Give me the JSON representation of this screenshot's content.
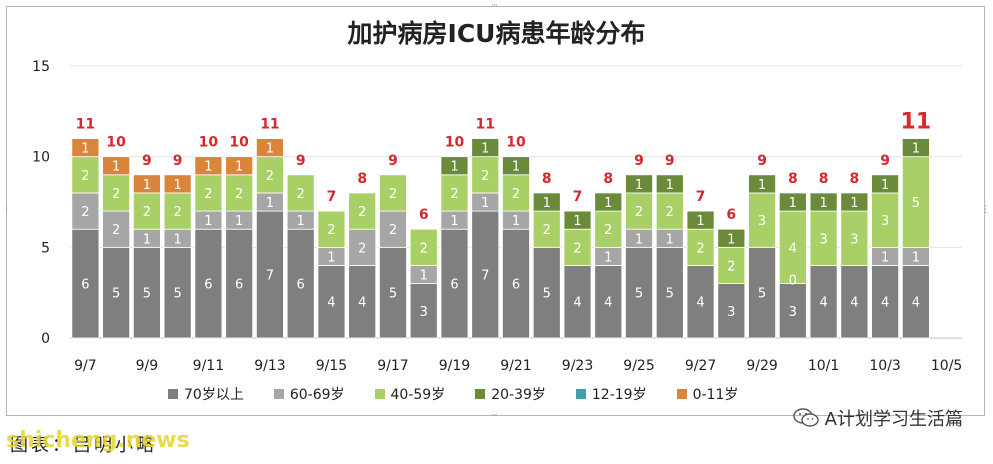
{
  "title": "加护病房ICU病患年龄分布",
  "footer_text": "图表：吕明小略",
  "watermark": "shicheng.news",
  "wechat_label": "A计划学习生活篇",
  "colors": {
    "70+": "#7f7f7f",
    "60-69": "#a6a6a6",
    "40-59": "#a9d067",
    "20-39": "#6b8a3a",
    "12-19": "#3fa0a8",
    "0-11": "#d9853b",
    "total_label": "#d7282f"
  },
  "legend": [
    {
      "key": "70+",
      "label": "70岁以上"
    },
    {
      "key": "60-69",
      "label": "60-69岁"
    },
    {
      "key": "40-59",
      "label": "40-59岁"
    },
    {
      "key": "20-39",
      "label": "20-39岁"
    },
    {
      "key": "12-19",
      "label": "12-19岁"
    },
    {
      "key": "0-11",
      "label": "0-11岁"
    }
  ],
  "chart_data": {
    "type": "bar",
    "stacked": true,
    "title": "加护病房ICU病患年龄分布",
    "categories": [
      "9/7",
      "9/8",
      "9/9",
      "9/10",
      "9/11",
      "9/12",
      "9/13",
      "9/14",
      "9/15",
      "9/16",
      "9/17",
      "9/18",
      "9/19",
      "9/20",
      "9/21",
      "9/22",
      "9/23",
      "9/24",
      "9/25",
      "9/26",
      "9/27",
      "9/28",
      "9/29",
      "9/30",
      "10/1",
      "10/2",
      "10/3",
      "10/4",
      "10/5"
    ],
    "x_tick_labels": [
      "9/7",
      "9/9",
      "9/11",
      "9/13",
      "9/15",
      "9/17",
      "9/19",
      "9/21",
      "9/23",
      "9/25",
      "9/27",
      "9/29",
      "10/1",
      "10/3",
      "10/5"
    ],
    "ylim": [
      0,
      15
    ],
    "yticks": [
      0,
      5,
      10,
      15
    ],
    "series": [
      {
        "name": "70岁以上",
        "key": "70+",
        "values": [
          6,
          5,
          5,
          5,
          6,
          6,
          7,
          6,
          4,
          4,
          5,
          3,
          6,
          7,
          6,
          5,
          4,
          4,
          5,
          5,
          4,
          3,
          5,
          3,
          4,
          4,
          4,
          4,
          null
        ]
      },
      {
        "name": "60-69岁",
        "key": "60-69",
        "values": [
          2,
          2,
          1,
          1,
          1,
          1,
          1,
          1,
          1,
          2,
          2,
          1,
          1,
          1,
          1,
          0,
          0,
          1,
          1,
          1,
          0,
          0,
          0,
          0,
          0,
          0,
          1,
          1,
          null
        ]
      },
      {
        "name": "40-59岁",
        "key": "40-59",
        "values": [
          2,
          2,
          2,
          2,
          2,
          2,
          2,
          2,
          2,
          2,
          2,
          2,
          2,
          2,
          2,
          2,
          2,
          2,
          2,
          2,
          2,
          2,
          3,
          4,
          3,
          3,
          3,
          5,
          null
        ]
      },
      {
        "name": "20-39岁",
        "key": "20-39",
        "values": [
          0,
          0,
          0,
          0,
          0,
          0,
          0,
          0,
          0,
          0,
          0,
          0,
          1,
          1,
          1,
          1,
          1,
          1,
          1,
          1,
          1,
          1,
          1,
          1,
          1,
          1,
          1,
          1,
          null
        ]
      },
      {
        "name": "12-19岁",
        "key": "12-19",
        "values": [
          0,
          0,
          0,
          0,
          0,
          0,
          0,
          0,
          0,
          0,
          0,
          0,
          0,
          0,
          0,
          0,
          0,
          0,
          0,
          0,
          0,
          0,
          0,
          0,
          0,
          0,
          0,
          0,
          null
        ]
      },
      {
        "name": "0-11岁",
        "key": "0-11",
        "values": [
          1,
          1,
          1,
          1,
          1,
          1,
          1,
          0,
          0,
          0,
          0,
          0,
          0,
          0,
          0,
          0,
          0,
          0,
          0,
          0,
          0,
          0,
          0,
          0,
          0,
          0,
          0,
          0,
          null
        ]
      }
    ],
    "zero_labels": [
      {
        "index": 23,
        "series": "60-69",
        "text": "0"
      }
    ],
    "totals": [
      11,
      10,
      9,
      9,
      10,
      10,
      11,
      9,
      7,
      8,
      9,
      6,
      10,
      11,
      10,
      8,
      7,
      8,
      9,
      9,
      7,
      6,
      9,
      8,
      8,
      8,
      9,
      11,
      null
    ],
    "highlight_total_index": 27,
    "grid": true,
    "legend_position": "bottom"
  }
}
